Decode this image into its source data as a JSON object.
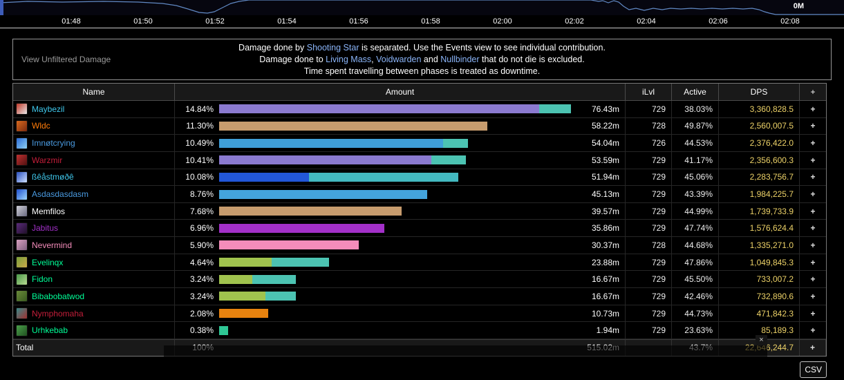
{
  "chart": {
    "right_label": "0M",
    "line_color": "#6189c4",
    "time_labels": [
      "01:48",
      "01:50",
      "01:52",
      "01:54",
      "01:56",
      "01:58",
      "02:00",
      "02:02",
      "02:04",
      "02:06",
      "02:08"
    ]
  },
  "notice": {
    "view_unfiltered": "View Unfiltered Damage",
    "lines": [
      [
        {
          "t": "Damage done by "
        },
        {
          "t": "Shooting Star",
          "link": true
        },
        {
          "t": " is separated. Use the Events view to see individual contribution."
        }
      ],
      [
        {
          "t": "Damage done to "
        },
        {
          "t": "Living Mass",
          "link": true
        },
        {
          "t": ", "
        },
        {
          "t": "Voidwarden",
          "link": true
        },
        {
          "t": " and "
        },
        {
          "t": "Nullbinder",
          "link": true
        },
        {
          "t": " that do not die is excluded."
        }
      ],
      [
        {
          "t": "Time spent travelling between phases is treated as downtime."
        }
      ]
    ]
  },
  "table": {
    "headers": {
      "name": "Name",
      "amount": "Amount",
      "ilvl": "iLvl",
      "active": "Active",
      "dps": "DPS",
      "plus": "+"
    },
    "max_amount": 76.43,
    "rows": [
      {
        "name": "Maybezil",
        "name_color": "#3fc7eb",
        "icon": [
          "#c23a2a",
          "#e8e8e8"
        ],
        "pct": "14.84%",
        "amount": 76.43,
        "amount_label": "76.43m",
        "ilvl": "729",
        "active": "38.03%",
        "dps": "3,360,828.5",
        "segments": [
          {
            "c": "#8b7ad0",
            "f": 0.91
          },
          {
            "c": "#4cc3b2",
            "f": 0.09
          }
        ]
      },
      {
        "name": "Wldc",
        "name_color": "#ff7c0a",
        "icon": [
          "#d96a1e",
          "#7a2a10"
        ],
        "pct": "11.30%",
        "amount": 58.22,
        "amount_label": "58.22m",
        "ilvl": "728",
        "active": "49.87%",
        "dps": "2,560,007.5",
        "segments": [
          {
            "c": "#c79c6e",
            "f": 1
          }
        ]
      },
      {
        "name": "Imnøtcrying",
        "name_color": "#4a9ae0",
        "icon": [
          "#2a6bd8",
          "#8fd0f0"
        ],
        "pct": "10.49%",
        "amount": 54.04,
        "amount_label": "54.04m",
        "ilvl": "726",
        "active": "44.53%",
        "dps": "2,376,422.0",
        "segments": [
          {
            "c": "#3f9fd8",
            "f": 0.9
          },
          {
            "c": "#4cc3b2",
            "f": 0.1
          }
        ]
      },
      {
        "name": "Warzmir",
        "name_color": "#c41e3a",
        "icon": [
          "#c03030",
          "#501010"
        ],
        "pct": "10.41%",
        "amount": 53.59,
        "amount_label": "53.59m",
        "ilvl": "729",
        "active": "41.17%",
        "dps": "2,356,600.3",
        "segments": [
          {
            "c": "#8b7ad0",
            "f": 0.86
          },
          {
            "c": "#4cc3b2",
            "f": 0.14
          }
        ]
      },
      {
        "name": "ßêåstmøðê",
        "name_color": "#3fc7eb",
        "icon": [
          "#2a50c0",
          "#cfe0ff"
        ],
        "pct": "10.08%",
        "amount": 51.94,
        "amount_label": "51.94m",
        "ilvl": "729",
        "active": "45.06%",
        "dps": "2,283,756.7",
        "segments": [
          {
            "c": "#2257d8",
            "f": 0.375
          },
          {
            "c": "#43b9c0",
            "f": 0.625
          }
        ]
      },
      {
        "name": "Asdasdasdasm",
        "name_color": "#4a9ae0",
        "icon": [
          "#1e4fd0",
          "#9fd8ff"
        ],
        "pct": "8.76%",
        "amount": 45.13,
        "amount_label": "45.13m",
        "ilvl": "729",
        "active": "43.39%",
        "dps": "1,984,225.7",
        "segments": [
          {
            "c": "#44a4dc",
            "f": 1
          }
        ]
      },
      {
        "name": "Memfilos",
        "name_color": "#ffffff",
        "icon": [
          "#cfcfd8",
          "#6a6a80"
        ],
        "pct": "7.68%",
        "amount": 39.57,
        "amount_label": "39.57m",
        "ilvl": "729",
        "active": "44.99%",
        "dps": "1,739,733.9",
        "segments": [
          {
            "c": "#c79c6e",
            "f": 1
          }
        ]
      },
      {
        "name": "Jabitus",
        "name_color": "#a330c9",
        "icon": [
          "#5a2a7a",
          "#20102a"
        ],
        "pct": "6.96%",
        "amount": 35.86,
        "amount_label": "35.86m",
        "ilvl": "729",
        "active": "47.74%",
        "dps": "1,576,624.4",
        "segments": [
          {
            "c": "#a330c9",
            "f": 1
          }
        ]
      },
      {
        "name": "Nevermind",
        "name_color": "#f48cba",
        "icon": [
          "#d8a0c0",
          "#806080"
        ],
        "pct": "5.90%",
        "amount": 30.37,
        "amount_label": "30.37m",
        "ilvl": "728",
        "active": "44.68%",
        "dps": "1,335,271.0",
        "segments": [
          {
            "c": "#f48cba",
            "f": 1
          }
        ]
      },
      {
        "name": "Evelinqx",
        "name_color": "#00ff98",
        "icon": [
          "#7aa03a",
          "#caa84a"
        ],
        "pct": "4.64%",
        "amount": 23.88,
        "amount_label": "23.88m",
        "ilvl": "729",
        "active": "47.86%",
        "dps": "1,049,845.3",
        "segments": [
          {
            "c": "#a0c34e",
            "f": 0.48
          },
          {
            "c": "#4cc3b2",
            "f": 0.52
          }
        ]
      },
      {
        "name": "Fidon",
        "name_color": "#00ff98",
        "icon": [
          "#4a9a4a",
          "#b8d890"
        ],
        "pct": "3.24%",
        "amount": 16.67,
        "amount_label": "16.67m",
        "ilvl": "729",
        "active": "45.50%",
        "dps": "733,007.2",
        "segments": [
          {
            "c": "#a0c34e",
            "f": 0.43
          },
          {
            "c": "#4cc3b2",
            "f": 0.57
          }
        ]
      },
      {
        "name": "Bibabobatwod",
        "name_color": "#00ff98",
        "icon": [
          "#6a8a3a",
          "#3a5a20"
        ],
        "pct": "3.24%",
        "amount": 16.67,
        "amount_label": "16.67m",
        "ilvl": "729",
        "active": "42.46%",
        "dps": "732,890.6",
        "segments": [
          {
            "c": "#a0c34e",
            "f": 0.6
          },
          {
            "c": "#4cc3b2",
            "f": 0.4
          }
        ]
      },
      {
        "name": "Nymphomaha",
        "name_color": "#c41e3a",
        "icon": [
          "#3a8a8a",
          "#a03030"
        ],
        "pct": "2.08%",
        "amount": 10.73,
        "amount_label": "10.73m",
        "ilvl": "729",
        "active": "44.73%",
        "dps": "471,842.3",
        "segments": [
          {
            "c": "#e8830f",
            "f": 1
          }
        ]
      },
      {
        "name": "Urhkebab",
        "name_color": "#00ff98",
        "icon": [
          "#4aa04a",
          "#205020"
        ],
        "pct": "0.38%",
        "amount": 1.94,
        "amount_label": "1.94m",
        "ilvl": "729",
        "active": "23.63%",
        "dps": "85,189.3",
        "segments": [
          {
            "c": "#2fc795",
            "f": 1
          }
        ]
      }
    ],
    "total": {
      "label": "Total",
      "pct": "100%",
      "amount_label": "515.02m",
      "ilvl": "",
      "active": "43.7%",
      "dps": "22,646,244.7"
    }
  },
  "overlay": {
    "close_label": "×"
  },
  "csv_button": "CSV"
}
